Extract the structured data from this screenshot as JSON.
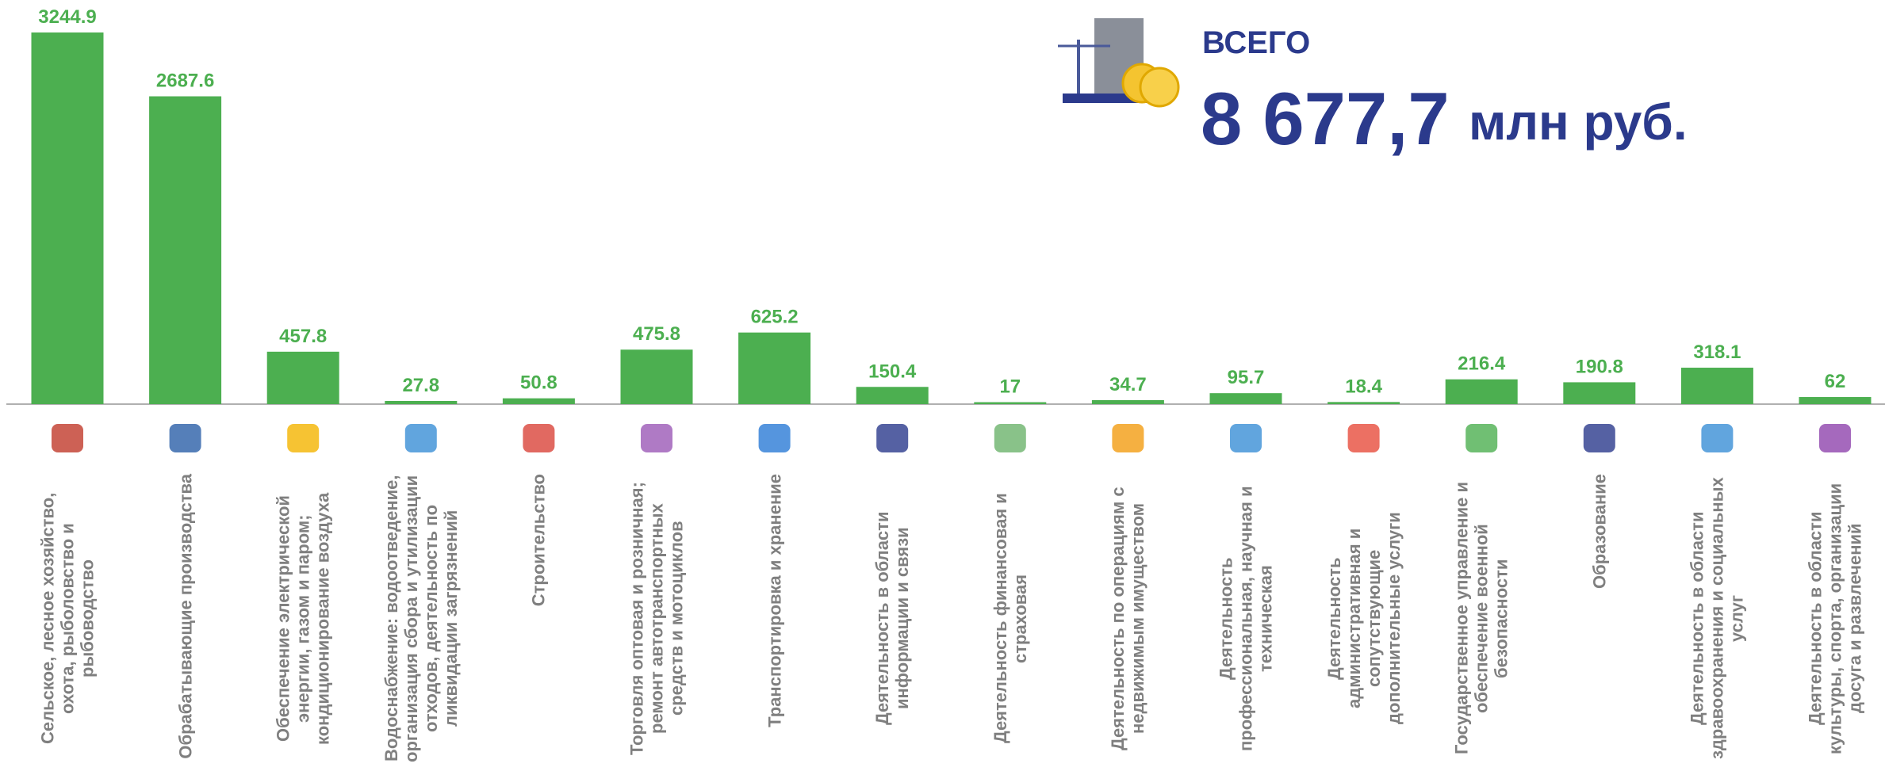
{
  "chart_data": {
    "type": "bar",
    "categories": [
      "Сельское, лесное хозяйство, охота, рыболовство и рыбоводство",
      "Обрабатывающие производства",
      "Обеспечение электрической энергии, газом и паром; кондиционирование воздуха",
      "Водоснабжение: водоотведение, организация сбора и утилизации отходов, деятельность по ликвидации загрязнений",
      "Строительство",
      "Торговля оптовая и розничная; ремонт автотранспортных средств и мотоциклов",
      "Транспортировка и хранение",
      "Деятельность в области информации и связи",
      "Деятельность финансовая и страховая",
      "Деятельность по операциям с недвижимым имуществом",
      "Деятельность профессиональная, научная и техническая",
      "Деятельность административная и сопутствующие дополнительные услуги",
      "Государственное управление и обеспечение военной безопасности",
      "Образование",
      "Деятельность в области здравоохранения и социальных услуг",
      "Деятельность в области культуры, спорта, организации досуга и развлечений"
    ],
    "values": [
      3244.9,
      2687.6,
      457.8,
      27.8,
      50.8,
      475.8,
      625.2,
      150.4,
      17,
      34.7,
      95.7,
      18.4,
      216.4,
      190.8,
      318.1,
      62
    ],
    "color": "#4caf50",
    "total": {
      "label": "ВСЕГО",
      "value": "8 677,7",
      "unit": "млн руб."
    }
  }
}
